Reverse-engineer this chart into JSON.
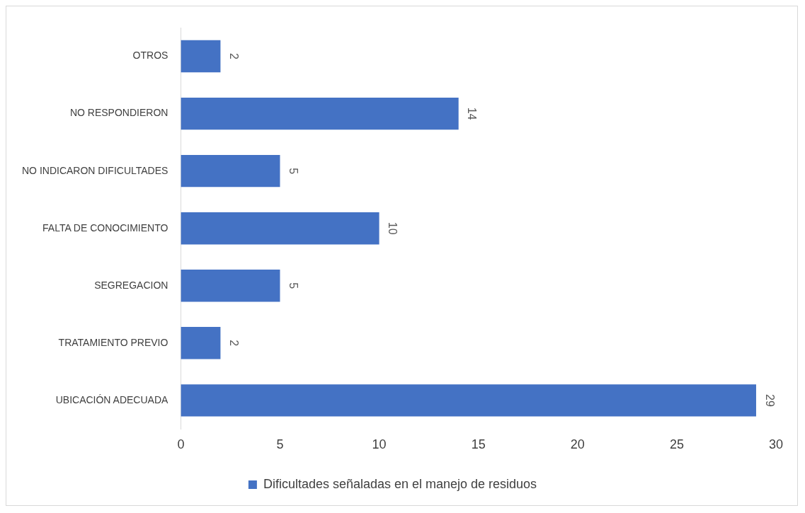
{
  "chart_data": {
    "type": "bar",
    "orientation": "horizontal",
    "categories": [
      "OTROS",
      "NO RESPONDIERON",
      "NO INDICARON DIFICULTADES",
      "FALTA DE CONOCIMIENTO",
      "SEGREGACION",
      "TRATAMIENTO PREVIO",
      "UBICACIÓN ADECUADA"
    ],
    "series": [
      {
        "name": "Dificultades señaladas en el manejo de residuos",
        "color": "#4472c4",
        "values": [
          2,
          14,
          5,
          10,
          5,
          2,
          29
        ]
      }
    ],
    "xlim": [
      0,
      30
    ],
    "xticks": [
      0,
      5,
      10,
      15,
      20,
      25,
      30
    ],
    "grid": false,
    "legend": "bottom",
    "data_labels": true
  }
}
